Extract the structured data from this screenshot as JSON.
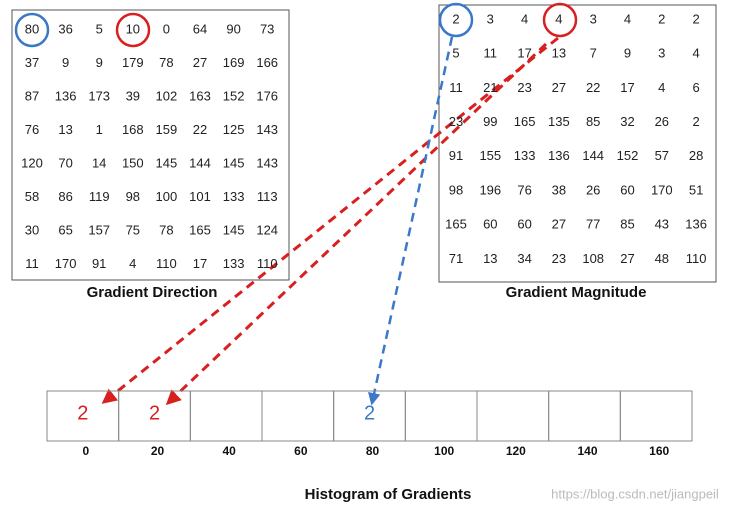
{
  "gradient_direction": {
    "label": "Gradient Direction",
    "rows": [
      [
        80,
        36,
        5,
        10,
        0,
        64,
        90,
        73
      ],
      [
        37,
        9,
        9,
        179,
        78,
        27,
        169,
        166
      ],
      [
        87,
        136,
        173,
        39,
        102,
        163,
        152,
        176
      ],
      [
        76,
        13,
        1,
        168,
        159,
        22,
        125,
        143
      ],
      [
        120,
        70,
        14,
        150,
        145,
        144,
        145,
        143
      ],
      [
        58,
        86,
        119,
        98,
        100,
        101,
        133,
        113
      ],
      [
        30,
        65,
        157,
        75,
        78,
        165,
        145,
        124
      ],
      [
        11,
        170,
        91,
        4,
        110,
        17,
        133,
        110
      ]
    ]
  },
  "gradient_magnitude": {
    "label": "Gradient Magnitude",
    "rows": [
      [
        2,
        3,
        4,
        4,
        3,
        4,
        2,
        2
      ],
      [
        5,
        11,
        17,
        13,
        7,
        9,
        3,
        4
      ],
      [
        11,
        21,
        23,
        27,
        22,
        17,
        4,
        6
      ],
      [
        23,
        99,
        165,
        135,
        85,
        32,
        26,
        2
      ],
      [
        91,
        155,
        133,
        136,
        144,
        152,
        57,
        28
      ],
      [
        98,
        196,
        76,
        38,
        26,
        60,
        170,
        51
      ],
      [
        165,
        60,
        60,
        27,
        77,
        85,
        43,
        136
      ],
      [
        71,
        13,
        34,
        23,
        108,
        27,
        48,
        110
      ]
    ]
  },
  "histogram": {
    "title": "Histogram of Gradients",
    "bins": [
      {
        "label": "0",
        "value": 2
      },
      {
        "label": "20",
        "value": 2
      },
      {
        "label": "40"
      },
      {
        "label": "60"
      },
      {
        "label": "80",
        "value": 2
      },
      {
        "label": "100"
      },
      {
        "label": "120"
      },
      {
        "label": "140"
      },
      {
        "label": "160"
      }
    ]
  },
  "watermark": "https://blog.csdn.net/jiangpeil"
}
